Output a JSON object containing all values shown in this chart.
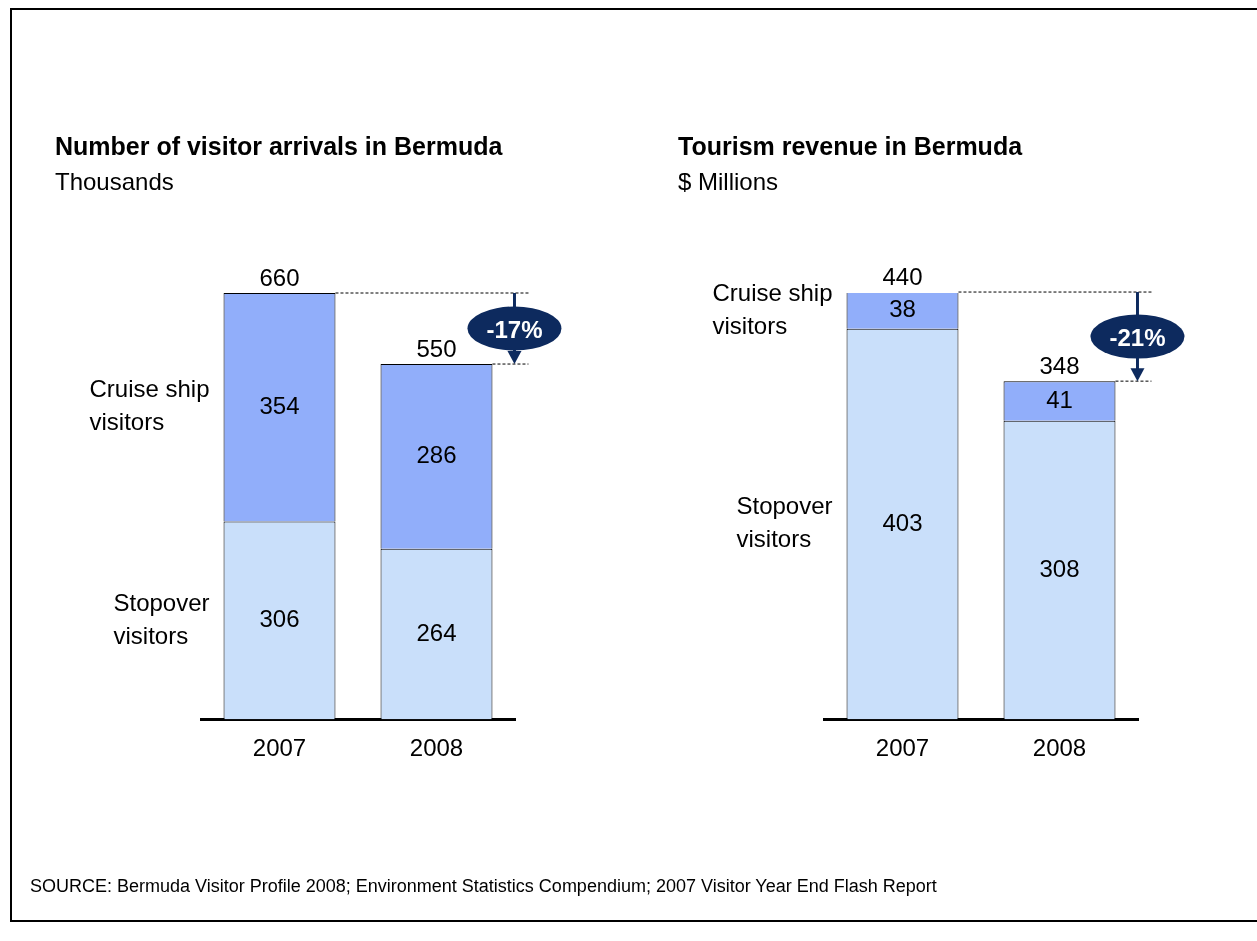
{
  "chart_data": [
    {
      "type": "bar",
      "title": "Number of visitor arrivals in Bermuda",
      "subtitle": "Thousands",
      "categories": [
        "2007",
        "2008"
      ],
      "stacked": true,
      "ylim": [
        0,
        660
      ],
      "data_labels": true,
      "totals": [
        "660",
        "550"
      ],
      "legend": false,
      "series": [
        {
          "name": "Stopover visitors",
          "color": "#c9dffa",
          "values": [
            306,
            264
          ]
        },
        {
          "name": "Cruise ship visitors",
          "color": "#91aefa",
          "values": [
            354,
            286
          ]
        }
      ],
      "annotations": [
        "-17%"
      ]
    },
    {
      "type": "bar",
      "title": "Tourism revenue in Bermuda",
      "subtitle": "$ Millions",
      "categories": [
        "2007",
        "2008"
      ],
      "stacked": true,
      "ylim": [
        0,
        440
      ],
      "data_labels": true,
      "totals": [
        "440",
        "348"
      ],
      "legend": false,
      "series": [
        {
          "name": "Stopover visitors",
          "color": "#c9dffa",
          "values": [
            403,
            308
          ]
        },
        {
          "name": "Cruise ship visitors",
          "color": "#91aefa",
          "values": [
            38,
            41
          ]
        }
      ],
      "annotations": [
        "-21%",
        "SOURCE: Bermuda Visitor Profile 2008; Environment Statistics Compendium; 2007 Visitor Year End Flash Report"
      ]
    }
  ]
}
